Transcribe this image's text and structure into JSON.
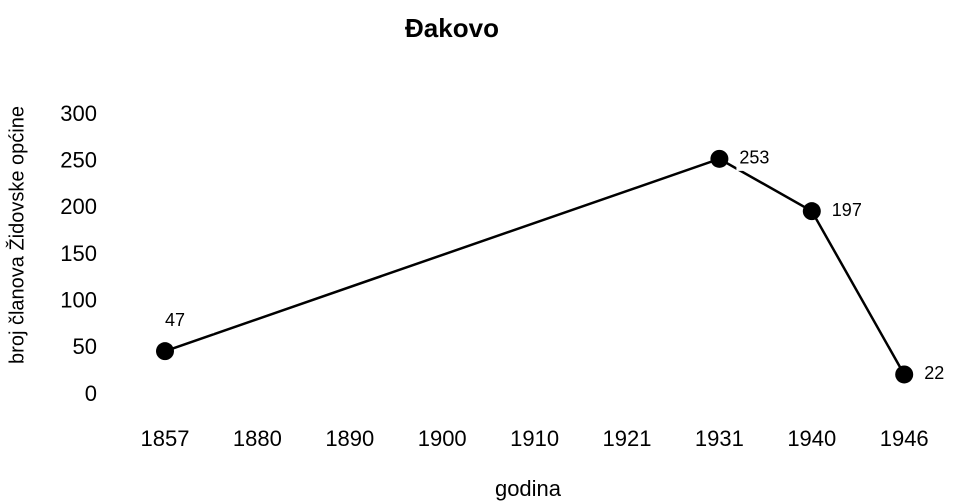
{
  "chart_data": {
    "type": "line",
    "title": "Đakovo",
    "x_label": "godina",
    "y_label": "broj članova Židovske općine",
    "categories": [
      "1857",
      "1880",
      "1890",
      "1900",
      "1910",
      "1921",
      "1931",
      "1940",
      "1946"
    ],
    "series": [
      {
        "name": "Đakovo",
        "color": "#000000",
        "x": [
          "1857",
          "1931",
          "1940",
          "1946"
        ],
        "values": [
          47,
          253,
          197,
          22
        ]
      }
    ],
    "ylim": [
      0,
      300
    ],
    "yticks": [
      0,
      50,
      100,
      150,
      200,
      250,
      300
    ],
    "grid": false
  }
}
